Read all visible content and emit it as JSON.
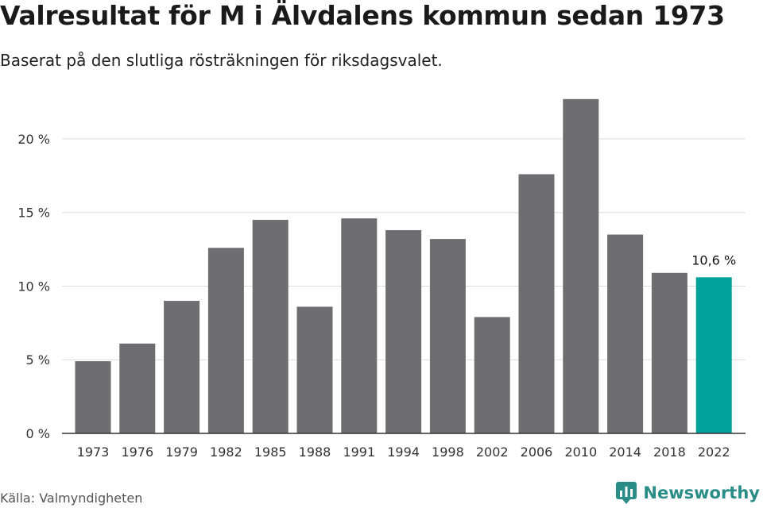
{
  "title": "Valresultat för M i Älvdalens kommun sedan 1973",
  "subtitle": "Baserat på den slutliga rösträkningen för riksdagsvalet.",
  "source": "Källa: Valmyndigheten",
  "brand": {
    "name": "Newsworthy",
    "icon": "newsworthy-logo-icon",
    "color": "#2a8c87"
  },
  "colors": {
    "bar": "#6e6d72",
    "highlight": "#00a29a",
    "grid": "#dddddd",
    "axis": "#333333"
  },
  "chart_data": {
    "type": "bar",
    "categories": [
      "1973",
      "1976",
      "1979",
      "1982",
      "1985",
      "1988",
      "1991",
      "1994",
      "1998",
      "2002",
      "2006",
      "2010",
      "2014",
      "2018",
      "2022"
    ],
    "values": [
      4.9,
      6.1,
      9.0,
      12.6,
      14.5,
      8.6,
      14.6,
      13.8,
      13.2,
      7.9,
      17.6,
      22.7,
      13.5,
      10.9,
      10.6
    ],
    "highlight_index": 14,
    "data_labels": [
      {
        "index": 14,
        "text": "10,6 %"
      }
    ],
    "y_ticks": [
      0,
      5,
      10,
      15,
      20
    ],
    "y_tick_labels": [
      "0 %",
      "5 %",
      "10 %",
      "15 %",
      "20 %"
    ],
    "ylim": [
      0,
      23.5
    ],
    "grid": true,
    "xlabel": "",
    "ylabel": ""
  }
}
